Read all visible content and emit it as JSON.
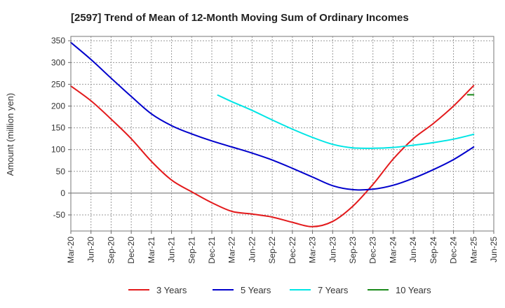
{
  "chart_data": {
    "type": "line",
    "title": "[2597]  Trend of Mean of 12-Month Moving Sum of Ordinary Incomes",
    "xlabel": "",
    "ylabel": "Amount (million yen)",
    "ylim": [
      -87,
      360
    ],
    "yticks": [
      350,
      300,
      250,
      200,
      150,
      100,
      50,
      0,
      -50
    ],
    "categories": [
      "Mar-20",
      "Jun-20",
      "Sep-20",
      "Dec-20",
      "Mar-21",
      "Jun-21",
      "Sep-21",
      "Dec-21",
      "Mar-22",
      "Jun-22",
      "Sep-22",
      "Dec-22",
      "Mar-23",
      "Jun-23",
      "Sep-23",
      "Dec-23",
      "Mar-24",
      "Jun-24",
      "Sep-24",
      "Dec-24",
      "Mar-25",
      "Jun-25"
    ],
    "grid": true,
    "legend_position": "bottom",
    "series": [
      {
        "name": "3 Years",
        "color": "#e31a1c",
        "points": [
          [
            0,
            246
          ],
          [
            1,
            212
          ],
          [
            2,
            170
          ],
          [
            3,
            125
          ],
          [
            4,
            73
          ],
          [
            5,
            30
          ],
          [
            6,
            3
          ],
          [
            7,
            -22
          ],
          [
            8,
            -42
          ],
          [
            9,
            -48
          ],
          [
            10,
            -55
          ],
          [
            11,
            -67
          ],
          [
            12,
            -77
          ],
          [
            13,
            -65
          ],
          [
            14,
            -30
          ],
          [
            15,
            20
          ],
          [
            16,
            78
          ],
          [
            17,
            125
          ],
          [
            18,
            160
          ],
          [
            19,
            200
          ],
          [
            20,
            247
          ]
        ]
      },
      {
        "name": "5 Years",
        "color": "#0000cc",
        "points": [
          [
            0,
            346
          ],
          [
            1,
            307
          ],
          [
            2,
            264
          ],
          [
            3,
            222
          ],
          [
            4,
            182
          ],
          [
            5,
            155
          ],
          [
            6,
            136
          ],
          [
            7,
            120
          ],
          [
            8,
            106
          ],
          [
            9,
            92
          ],
          [
            10,
            76
          ],
          [
            11,
            57
          ],
          [
            12,
            37
          ],
          [
            13,
            17
          ],
          [
            14,
            8
          ],
          [
            15,
            9
          ],
          [
            16,
            18
          ],
          [
            17,
            34
          ],
          [
            18,
            54
          ],
          [
            19,
            77
          ],
          [
            20,
            106
          ]
        ]
      },
      {
        "name": "7 Years",
        "color": "#00e5e5",
        "points": [
          [
            7.3,
            225
          ],
          [
            8,
            210
          ],
          [
            9,
            190
          ],
          [
            10,
            168
          ],
          [
            11,
            147
          ],
          [
            12,
            128
          ],
          [
            13,
            112
          ],
          [
            14,
            104
          ],
          [
            15,
            103
          ],
          [
            16,
            105
          ],
          [
            17,
            110
          ],
          [
            18,
            116
          ],
          [
            19,
            124
          ],
          [
            20,
            135
          ]
        ]
      },
      {
        "name": "10 Years",
        "color": "#1a8a1a",
        "points": [
          [
            19.7,
            226
          ],
          [
            20,
            226
          ]
        ]
      }
    ]
  }
}
